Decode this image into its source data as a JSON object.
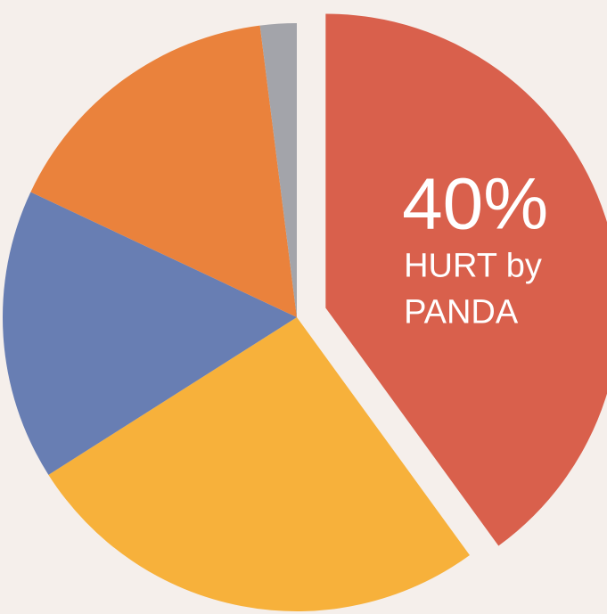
{
  "chart_data": {
    "type": "pie",
    "categories": [
      "",
      "",
      "",
      "",
      ""
    ],
    "values": [
      40,
      26,
      16,
      16,
      2
    ],
    "colors": [
      "#d9604c",
      "#f7b13b",
      "#687eb3",
      "#ea823c",
      "#a3a4aa"
    ],
    "annotations": [
      {
        "category_index": 0,
        "value_label": "40%",
        "text_lines": [
          "HURT by",
          "PANDA"
        ]
      }
    ],
    "legend": "none",
    "title": ""
  }
}
